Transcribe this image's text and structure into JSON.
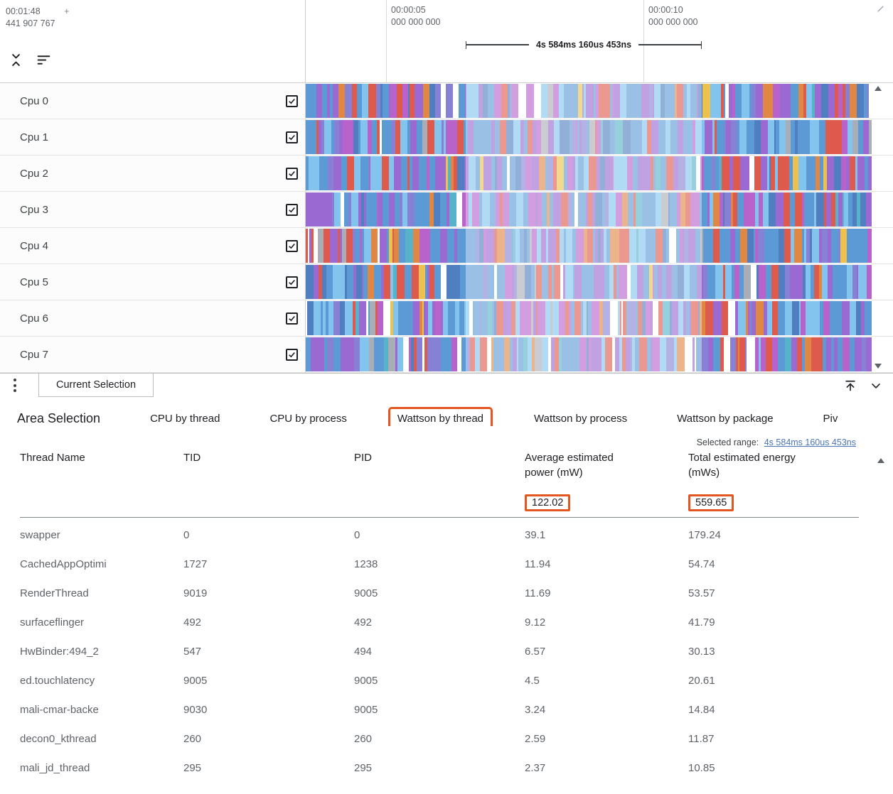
{
  "colors": {
    "annotation": "#e2571f",
    "link": "#4a74b8"
  },
  "ruler": {
    "viewport_time": "00:01:48",
    "viewport_plus": "+",
    "viewport_offset": "441 907 767",
    "ticks": [
      {
        "time": "00:00:05",
        "offset": "000 000 000"
      },
      {
        "time": "00:00:10",
        "offset": "000 000 000"
      }
    ],
    "range_label": "4s 584ms 160us 453ns"
  },
  "tracks": [
    {
      "label": "Cpu 0",
      "checked": true,
      "seed": 3
    },
    {
      "label": "Cpu 1",
      "checked": true,
      "seed": 17
    },
    {
      "label": "Cpu 2",
      "checked": true,
      "seed": 29
    },
    {
      "label": "Cpu 3",
      "checked": true,
      "seed": 41
    },
    {
      "label": "Cpu 4",
      "checked": true,
      "seed": 53
    },
    {
      "label": "Cpu 5",
      "checked": true,
      "seed": 67
    },
    {
      "label": "Cpu 6",
      "checked": true,
      "seed": 79
    },
    {
      "label": "Cpu 7",
      "checked": true,
      "seed": 97
    }
  ],
  "slice_palette": [
    {
      "color": "#5c9ad6",
      "weight": 24
    },
    {
      "color": "#82c4ee",
      "weight": 12
    },
    {
      "color": "#4f7fc1",
      "weight": 7
    },
    {
      "color": "#9a6ad2",
      "weight": 15
    },
    {
      "color": "#b763cb",
      "weight": 9
    },
    {
      "color": "#8781d6",
      "weight": 7
    },
    {
      "color": "#dd5a4d",
      "weight": 11
    },
    {
      "color": "#e08743",
      "weight": 3
    },
    {
      "color": "#ecc14d",
      "weight": 2
    },
    {
      "color": "#56b3c9",
      "weight": 2
    },
    {
      "color": "#a9aeb6",
      "weight": 3
    },
    {
      "color": "#ffffff",
      "weight": 5
    }
  ],
  "details_panel": {
    "tab_label": "Current Selection"
  },
  "selection": {
    "title": "Area Selection",
    "tabs": [
      "CPU by thread",
      "CPU by process",
      "Wattson by thread",
      "Wattson by process",
      "Wattson by package",
      "Piv"
    ],
    "active_tab": "Wattson by thread",
    "selected_range_label": "Selected range:",
    "selected_range_value": "4s 584ms 160us 453ns"
  },
  "table": {
    "columns": [
      "Thread Name",
      "TID",
      "PID",
      "Average estimated power (mW)",
      "Total estimated energy (mWs)"
    ],
    "summary": {
      "avg_power": "122.02",
      "total_energy": "559.65"
    },
    "rows": [
      {
        "name": "swapper",
        "tid": "0",
        "pid": "0",
        "power": "39.1",
        "energy": "179.24"
      },
      {
        "name": "CachedAppOptimi",
        "tid": "1727",
        "pid": "1238",
        "power": "11.94",
        "energy": "54.74"
      },
      {
        "name": "RenderThread",
        "tid": "9019",
        "pid": "9005",
        "power": "11.69",
        "energy": "53.57"
      },
      {
        "name": "surfaceflinger",
        "tid": "492",
        "pid": "492",
        "power": "9.12",
        "energy": "41.79"
      },
      {
        "name": "HwBinder:494_2",
        "tid": "547",
        "pid": "494",
        "power": "6.57",
        "energy": "30.13"
      },
      {
        "name": "ed.touchlatency",
        "tid": "9005",
        "pid": "9005",
        "power": "4.5",
        "energy": "20.61"
      },
      {
        "name": "mali-cmar-backe",
        "tid": "9030",
        "pid": "9005",
        "power": "3.24",
        "energy": "14.84"
      },
      {
        "name": "decon0_kthread",
        "tid": "260",
        "pid": "260",
        "power": "2.59",
        "energy": "11.87"
      },
      {
        "name": "mali_jd_thread",
        "tid": "295",
        "pid": "295",
        "power": "2.37",
        "energy": "10.85"
      }
    ]
  }
}
